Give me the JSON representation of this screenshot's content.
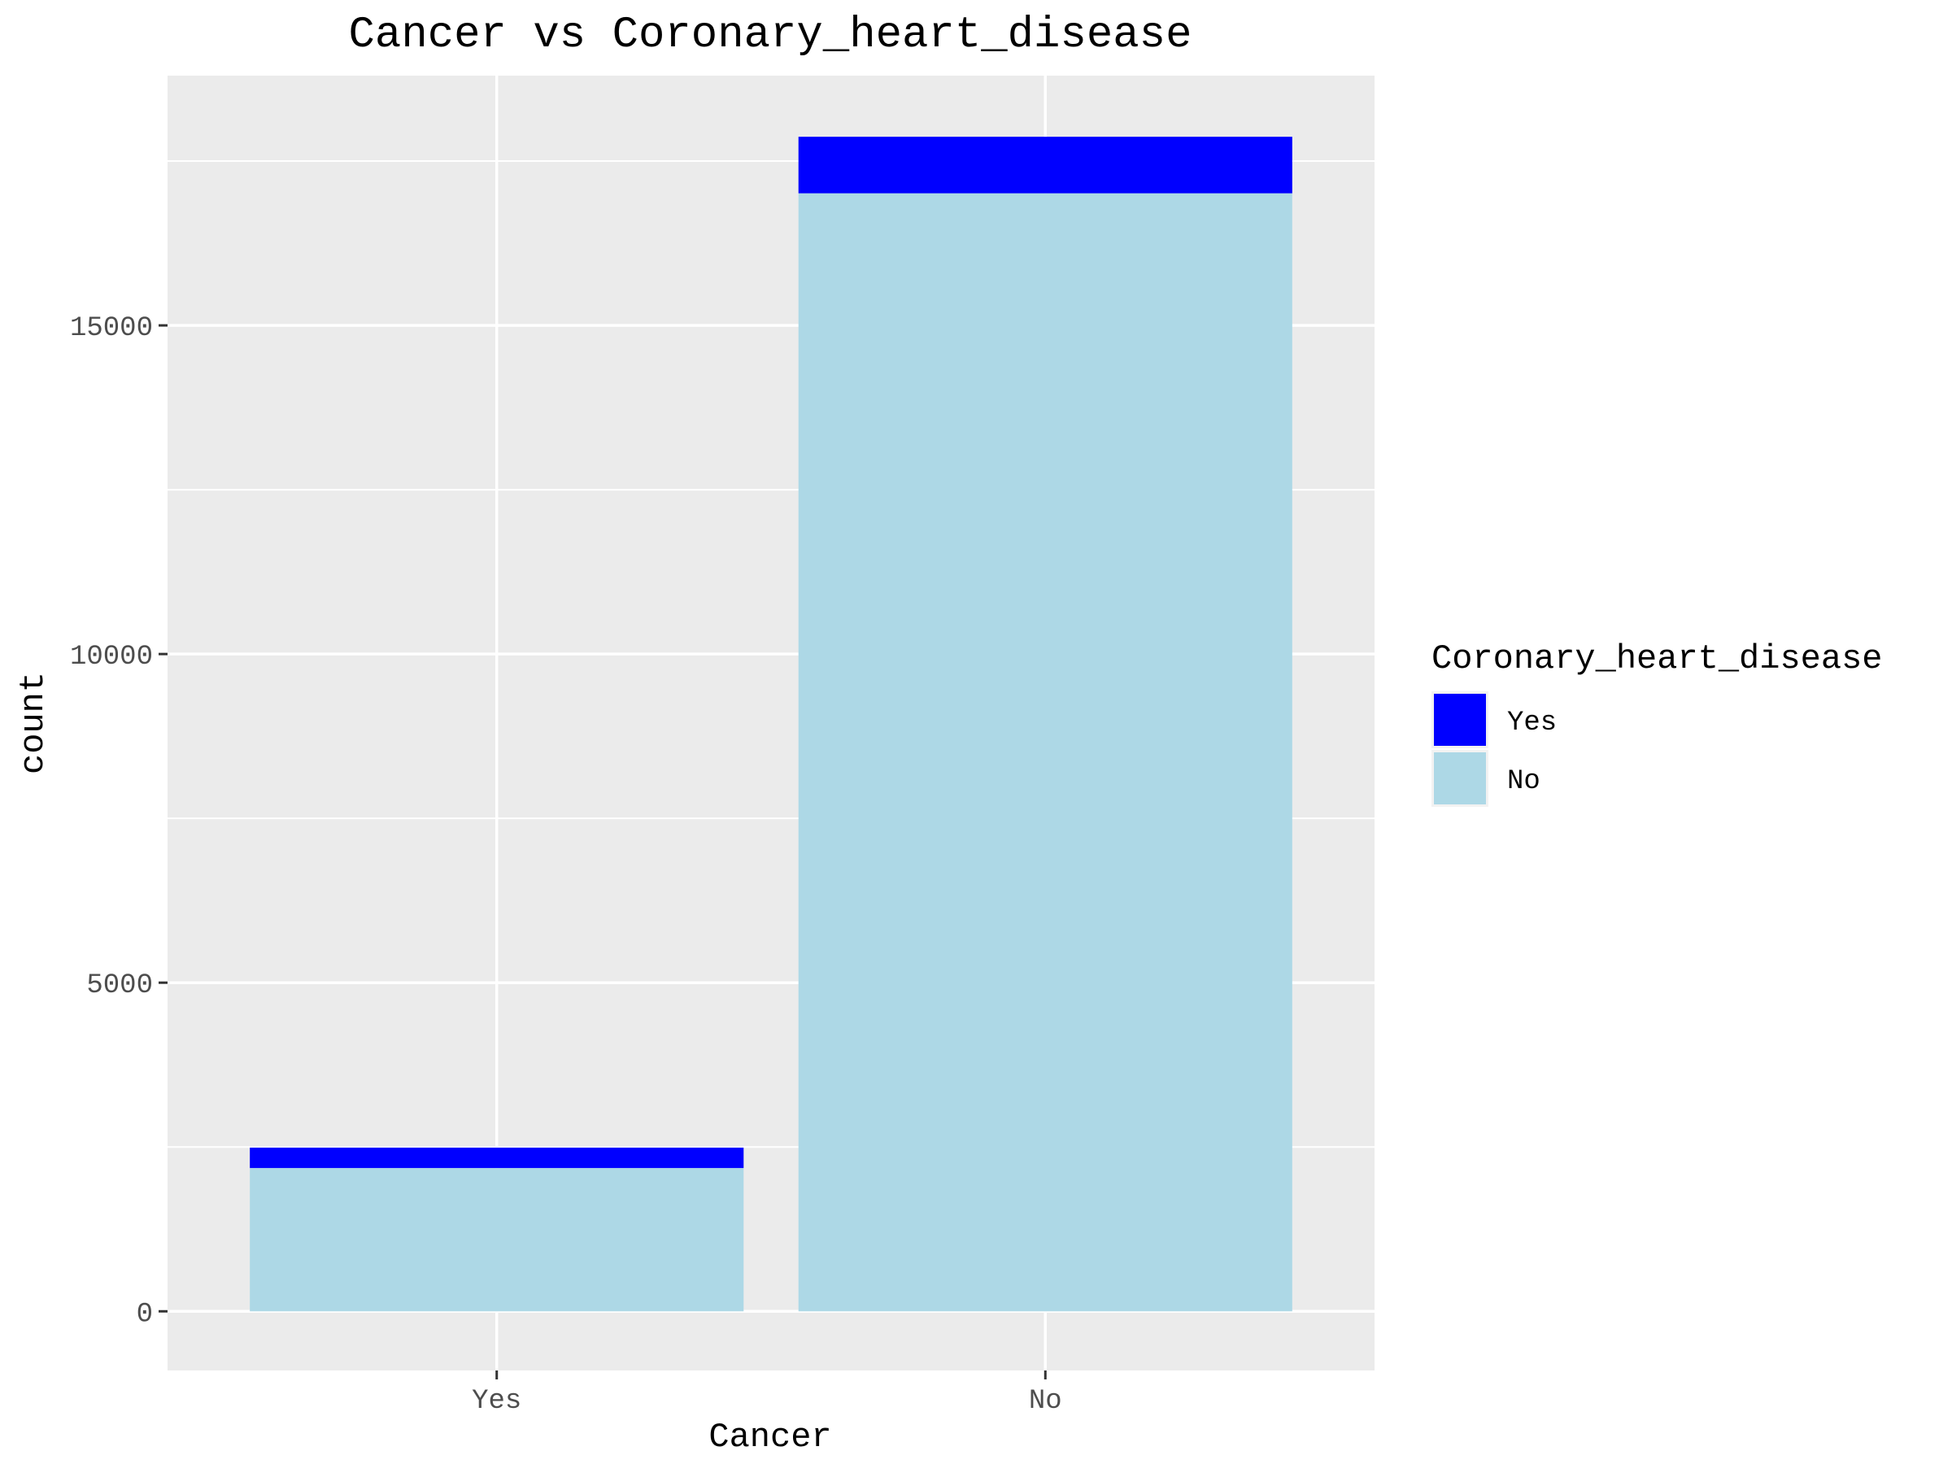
{
  "chart_data": {
    "type": "bar",
    "stacked": true,
    "title": "Cancer vs Coronary_heart_disease",
    "xlabel": "Cancer",
    "ylabel": "count",
    "categories": [
      "Yes",
      "No"
    ],
    "series": [
      {
        "name": "No",
        "values": [
          2180,
          17010
        ],
        "color": "#add8e6"
      },
      {
        "name": "Yes",
        "values": [
          310,
          860
        ],
        "color": "#0000ff"
      }
    ],
    "y_ticks": [
      0,
      5000,
      10000,
      15000
    ],
    "y_tick_labels": [
      "0",
      "5000",
      "10000",
      "15000"
    ],
    "ylim": [
      -900,
      18800
    ],
    "y_minor_ticks": [
      2500,
      7500,
      12500,
      17500
    ],
    "grid": true,
    "panel_background": "#ebebeb",
    "grid_color": "#ffffff",
    "legend": {
      "title": "Coronary_heart_disease",
      "position": "right",
      "entries": [
        {
          "label": "Yes",
          "color": "#0000ff"
        },
        {
          "label": "No",
          "color": "#add8e6"
        }
      ]
    }
  }
}
